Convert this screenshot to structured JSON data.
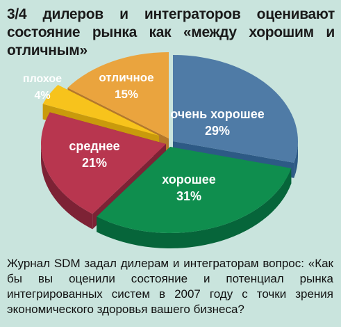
{
  "chart_data": {
    "type": "pie",
    "title": "3/4 дилеров и интеграторов оценивают состояние рынка как «между хорошим и отличным»",
    "slices": [
      {
        "name": "очень хорошее",
        "value": 29,
        "label": "29%",
        "color": "#4f7ba6",
        "side_color": "#2d5a85"
      },
      {
        "name": "хорошее",
        "value": 31,
        "label": "31%",
        "color": "#0f8e4e",
        "side_color": "#06653a"
      },
      {
        "name": "среднее",
        "value": 21,
        "label": "21%",
        "color": "#b8364f",
        "side_color": "#7d2235"
      },
      {
        "name": "плохое",
        "value": 4,
        "label": "4%",
        "color": "#f7c31c",
        "side_color": "#c99a0c"
      },
      {
        "name": "отличное",
        "value": 15,
        "label": "15%",
        "color": "#eaa43e",
        "side_color": "#b5782a"
      }
    ]
  },
  "caption": "Журнал SDM задал дилерам и интеграторам вопрос: «Как бы вы оценили состояние и потенциал рынка интегрированных систем в 2007 году с точки зрения экономического здоровья вашего бизнеса?"
}
